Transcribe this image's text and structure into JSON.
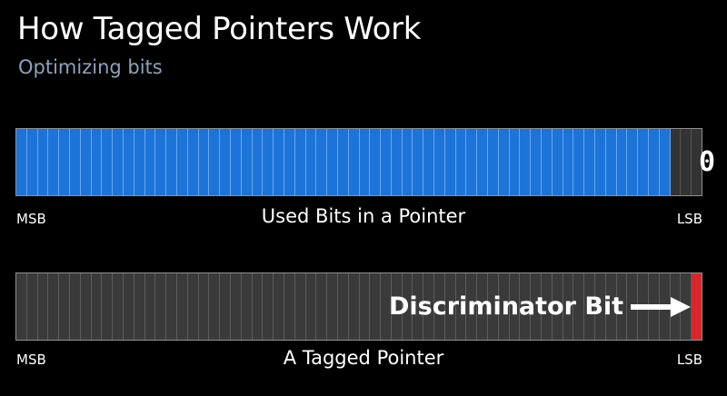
{
  "slide": {
    "title": "How Tagged Pointers Work",
    "subtitle": "Optimizing bits"
  },
  "used_bits_diagram": {
    "total_bits": 64,
    "used_bits": 61,
    "bit_value_label": "0",
    "left_label": "MSB",
    "caption": "Used Bits in a Pointer",
    "right_label": "LSB"
  },
  "tagged_pointer_diagram": {
    "total_bits": 64,
    "discriminator_bits": 1,
    "callout": "Discriminator Bit",
    "left_label": "MSB",
    "caption": "A Tagged Pointer",
    "right_label": "LSB"
  },
  "colors": {
    "used_bit": "#1d74d8",
    "unused_bit": "#333333",
    "tagged_bit": "#3a3a3a",
    "discriminator_bit": "#d8262c",
    "subtitle": "#8da3bd"
  },
  "icons": [
    "right-arrow-icon"
  ]
}
